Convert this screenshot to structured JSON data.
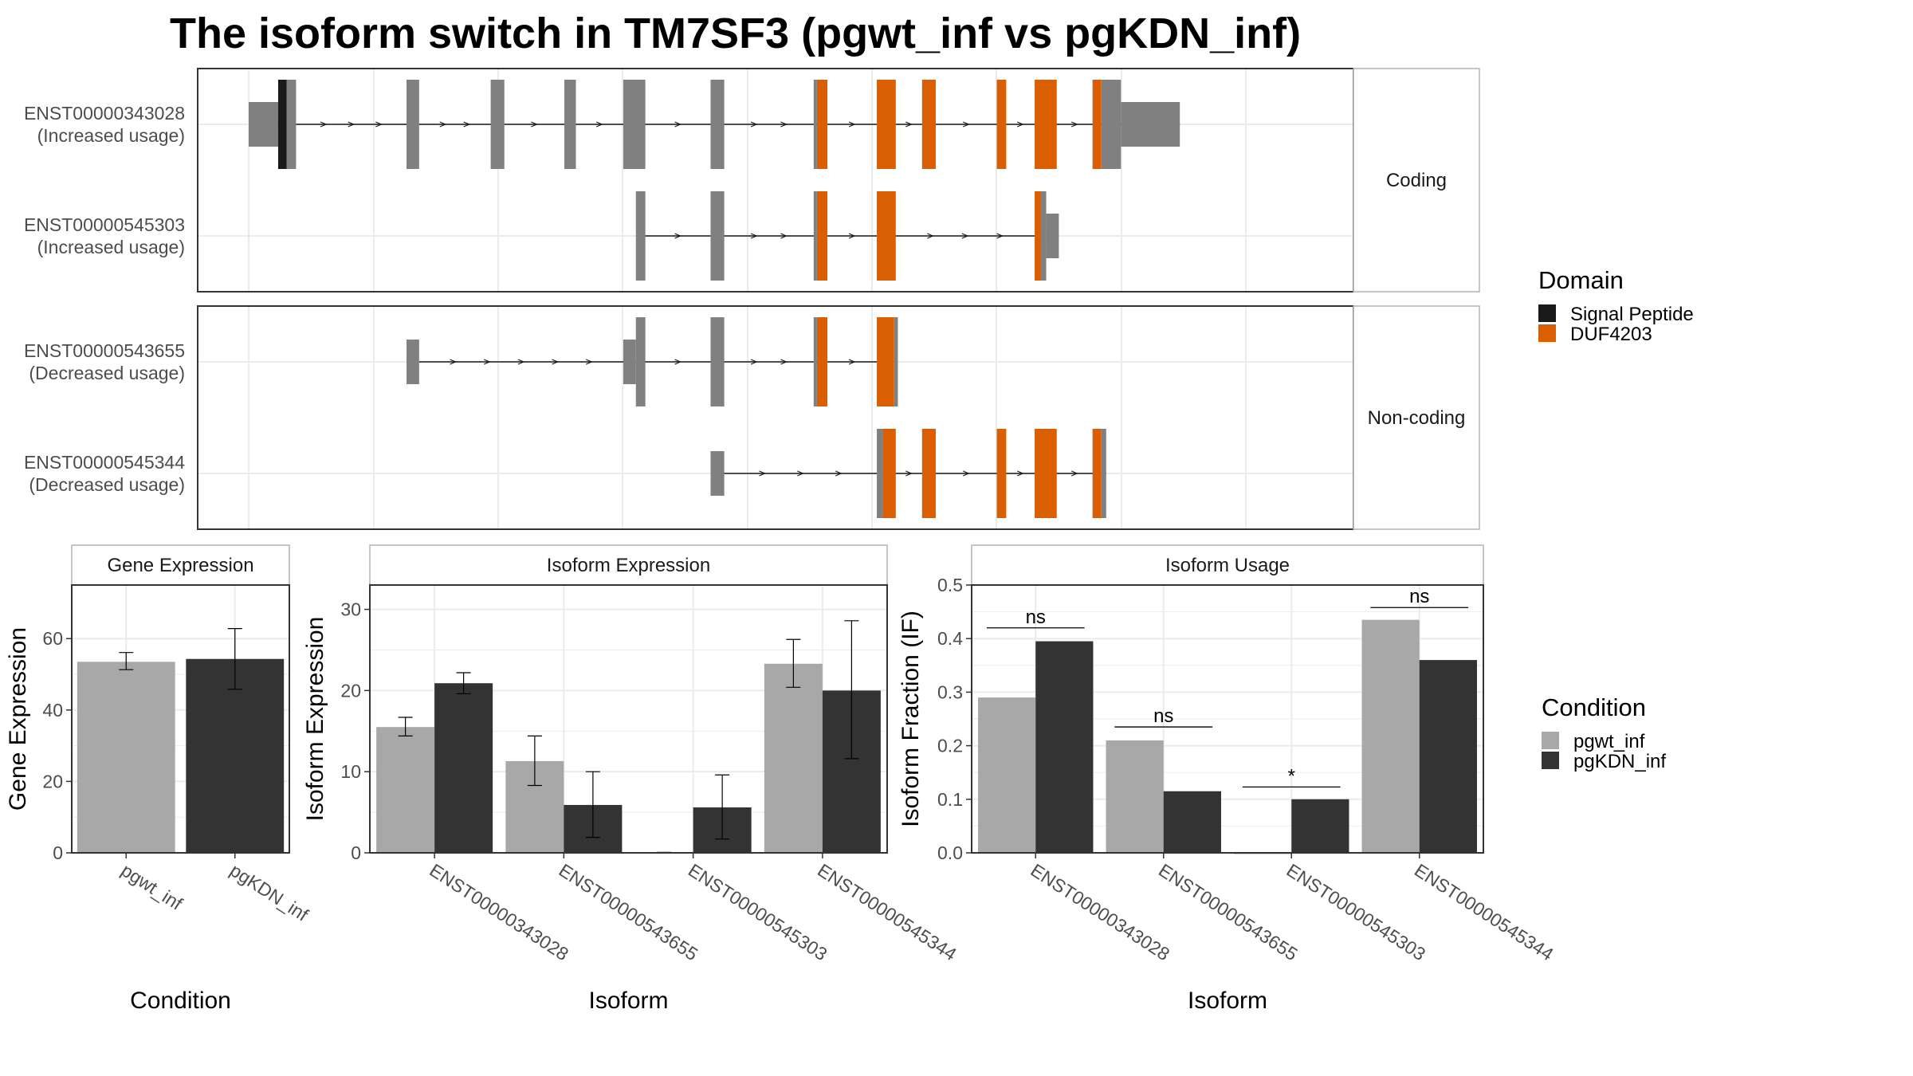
{
  "title": "The isoform switch in TM7SF3 (pgwt_inf vs pgKDN_inf)",
  "colors": {
    "exon": "#808080",
    "signal": "#1a1a1a",
    "duf": "#d95f02",
    "cond1": "#a8a8a8",
    "cond2": "#333333",
    "grid": "#ebebeb",
    "frame": "#333333"
  },
  "legends": {
    "domain": {
      "title": "Domain",
      "items": [
        {
          "label": "Signal Peptide",
          "color": "#1a1a1a"
        },
        {
          "label": "DUF4203",
          "color": "#d95f02"
        }
      ]
    },
    "condition": {
      "title": "Condition",
      "items": [
        {
          "label": "pgwt_inf",
          "color": "#a8a8a8"
        },
        {
          "label": "pgKDN_inf",
          "color": "#333333"
        }
      ]
    }
  },
  "chart_data": [
    {
      "type": "gene-structure",
      "groups": [
        {
          "label": "Coding",
          "isoforms": [
            {
              "id": "ENST00000343028",
              "label": [
                "ENST00000343028",
                "(Increased usage)"
              ],
              "exons": [
                [
                  0.0,
                  0.028,
                  "utr"
                ],
                [
                  0.028,
                  0.036,
                  "signal"
                ],
                [
                  0.036,
                  0.045,
                  "cds"
                ],
                [
                  0.15,
                  0.162,
                  "cds"
                ],
                [
                  0.23,
                  0.243,
                  "cds"
                ],
                [
                  0.3,
                  0.311,
                  "cds"
                ],
                [
                  0.356,
                  0.377,
                  "cds"
                ],
                [
                  0.439,
                  0.452,
                  "cds"
                ],
                [
                  0.537,
                  0.54,
                  "cds"
                ],
                [
                  0.54,
                  0.55,
                  "duf"
                ],
                [
                  0.597,
                  0.615,
                  "duf"
                ],
                [
                  0.64,
                  0.653,
                  "duf"
                ],
                [
                  0.711,
                  0.72,
                  "duf"
                ],
                [
                  0.747,
                  0.768,
                  "duf"
                ],
                [
                  0.802,
                  0.81,
                  "duf"
                ],
                [
                  0.81,
                  0.829,
                  "cds"
                ],
                [
                  0.829,
                  0.885,
                  "utr"
                ]
              ]
            },
            {
              "id": "ENST00000545303",
              "label": [
                "ENST00000545303",
                "(Increased usage)"
              ],
              "exons": [
                [
                  0.368,
                  0.377,
                  "cds"
                ],
                [
                  0.439,
                  0.452,
                  "cds"
                ],
                [
                  0.537,
                  0.54,
                  "cds"
                ],
                [
                  0.54,
                  0.55,
                  "duf"
                ],
                [
                  0.597,
                  0.615,
                  "duf"
                ],
                [
                  0.747,
                  0.753,
                  "duf"
                ],
                [
                  0.753,
                  0.758,
                  "cds"
                ],
                [
                  0.758,
                  0.77,
                  "utr"
                ]
              ]
            }
          ]
        },
        {
          "label": "Non-coding",
          "isoforms": [
            {
              "id": "ENST00000543655",
              "label": [
                "ENST00000543655",
                "(Decreased usage)"
              ],
              "exons": [
                [
                  0.15,
                  0.162,
                  "utr"
                ],
                [
                  0.356,
                  0.368,
                  "utr"
                ],
                [
                  0.368,
                  0.377,
                  "cds"
                ],
                [
                  0.439,
                  0.452,
                  "cds"
                ],
                [
                  0.537,
                  0.54,
                  "cds"
                ],
                [
                  0.54,
                  0.55,
                  "duf"
                ],
                [
                  0.597,
                  0.613,
                  "duf"
                ],
                [
                  0.613,
                  0.617,
                  "cds"
                ]
              ]
            },
            {
              "id": "ENST00000545344",
              "label": [
                "ENST00000545344",
                "(Decreased usage)"
              ],
              "exons": [
                [
                  0.439,
                  0.452,
                  "utr"
                ],
                [
                  0.597,
                  0.603,
                  "cds"
                ],
                [
                  0.603,
                  0.615,
                  "duf"
                ],
                [
                  0.64,
                  0.653,
                  "duf"
                ],
                [
                  0.711,
                  0.72,
                  "duf"
                ],
                [
                  0.747,
                  0.768,
                  "duf"
                ],
                [
                  0.802,
                  0.81,
                  "duf"
                ],
                [
                  0.81,
                  0.815,
                  "cds"
                ]
              ]
            }
          ]
        }
      ]
    },
    {
      "type": "bar",
      "panel": "Gene Expression",
      "xlabel": "Condition",
      "ylabel": "Gene Expression",
      "ylim": [
        0,
        75
      ],
      "yticks": [
        0,
        20,
        40,
        60
      ],
      "categories": [
        "pgwt_inf",
        "pgKDN_inf"
      ],
      "values": [
        53.5,
        54.3
      ],
      "errors": [
        [
          51.3,
          56.1
        ],
        [
          45.8,
          62.8
        ]
      ]
    },
    {
      "type": "bar",
      "panel": "Isoform Expression",
      "xlabel": "Isoform",
      "ylabel": "Isoform Expression",
      "ylim": [
        0,
        33
      ],
      "yticks": [
        0,
        10,
        20,
        30
      ],
      "categories": [
        "ENST00000343028",
        "ENST00000543655",
        "ENST00000545303",
        "ENST00000545344"
      ],
      "series": [
        {
          "name": "pgwt_inf",
          "values": [
            15.5,
            11.3,
            0.05,
            23.3
          ],
          "errors": [
            [
              14.4,
              16.7
            ],
            [
              8.3,
              14.4
            ],
            [
              0.05,
              0.05
            ],
            [
              20.4,
              26.3
            ]
          ]
        },
        {
          "name": "pgKDN_inf",
          "values": [
            20.9,
            5.9,
            5.6,
            20.0
          ],
          "errors": [
            [
              19.6,
              22.2
            ],
            [
              1.9,
              10.0
            ],
            [
              1.7,
              9.6
            ],
            [
              11.6,
              28.6
            ]
          ]
        }
      ]
    },
    {
      "type": "bar",
      "panel": "Isoform Usage",
      "xlabel": "Isoform",
      "ylabel": "Isoform Fraction (IF)",
      "ylim": [
        0,
        0.5
      ],
      "yticks": [
        0.0,
        0.1,
        0.2,
        0.3,
        0.4,
        0.5
      ],
      "categories": [
        "ENST00000343028",
        "ENST00000543655",
        "ENST00000545303",
        "ENST00000545344"
      ],
      "series": [
        {
          "name": "pgwt_inf",
          "values": [
            0.29,
            0.21,
            0.0,
            0.435
          ]
        },
        {
          "name": "pgKDN_inf",
          "values": [
            0.395,
            0.115,
            0.1,
            0.36
          ]
        }
      ],
      "significance": [
        {
          "label": "ns",
          "y": 0.42
        },
        {
          "label": "ns",
          "y": 0.235
        },
        {
          "label": "*",
          "y": 0.123
        },
        {
          "label": "ns",
          "y": 0.458
        }
      ]
    }
  ]
}
